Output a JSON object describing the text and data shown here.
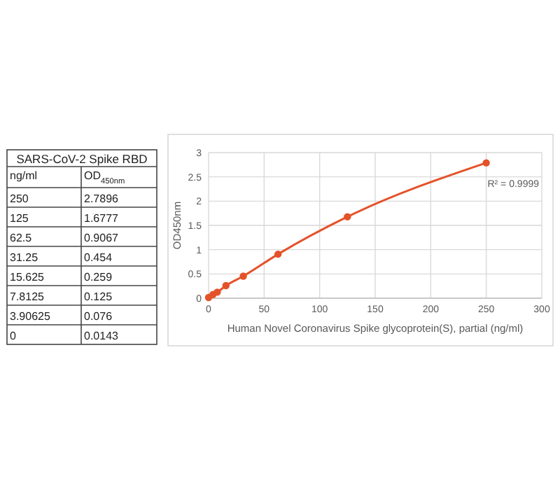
{
  "chart_data": [
    {
      "type": "other",
      "title": "SARS-CoV-2 Spike RBD",
      "xlabel": "ng/ml",
      "ylabel": "OD$_{450nm}$",
      "data_labels": true,
      "categories": [
        "250",
        "125",
        "62.5",
        "31.25",
        "15.625",
        "7.8125",
        "3.90625",
        "0"
      ],
      "values": [
        2.7896,
        1.6777,
        0.9067,
        0.454,
        0.259,
        0.125,
        0.076,
        0.0143
      ]
    },
    {
      "type": "line",
      "xlabel": "Human Novel Coronavirus Spike glycoprotein(S), partial (ng/ml)",
      "ylabel": "OD450nm",
      "xlim": [
        0,
        300
      ],
      "xticks": [
        0,
        50,
        100,
        150,
        200,
        250,
        300
      ],
      "ylim": [
        0,
        3
      ],
      "yticks": [
        0,
        0.5,
        1,
        1.5,
        2,
        2.5,
        3
      ],
      "grid": true,
      "marker": "circle",
      "line_style": "solid",
      "annotations": [
        "R² = 0.9999"
      ],
      "series": [
        {
          "color": "#e4522a",
          "x": [
            0,
            3.90625,
            7.8125,
            15.625,
            31.25,
            62.5,
            125,
            250
          ],
          "values": [
            0.0143,
            0.076,
            0.125,
            0.259,
            0.454,
            0.9067,
            1.6777,
            2.7896
          ]
        }
      ]
    }
  ]
}
